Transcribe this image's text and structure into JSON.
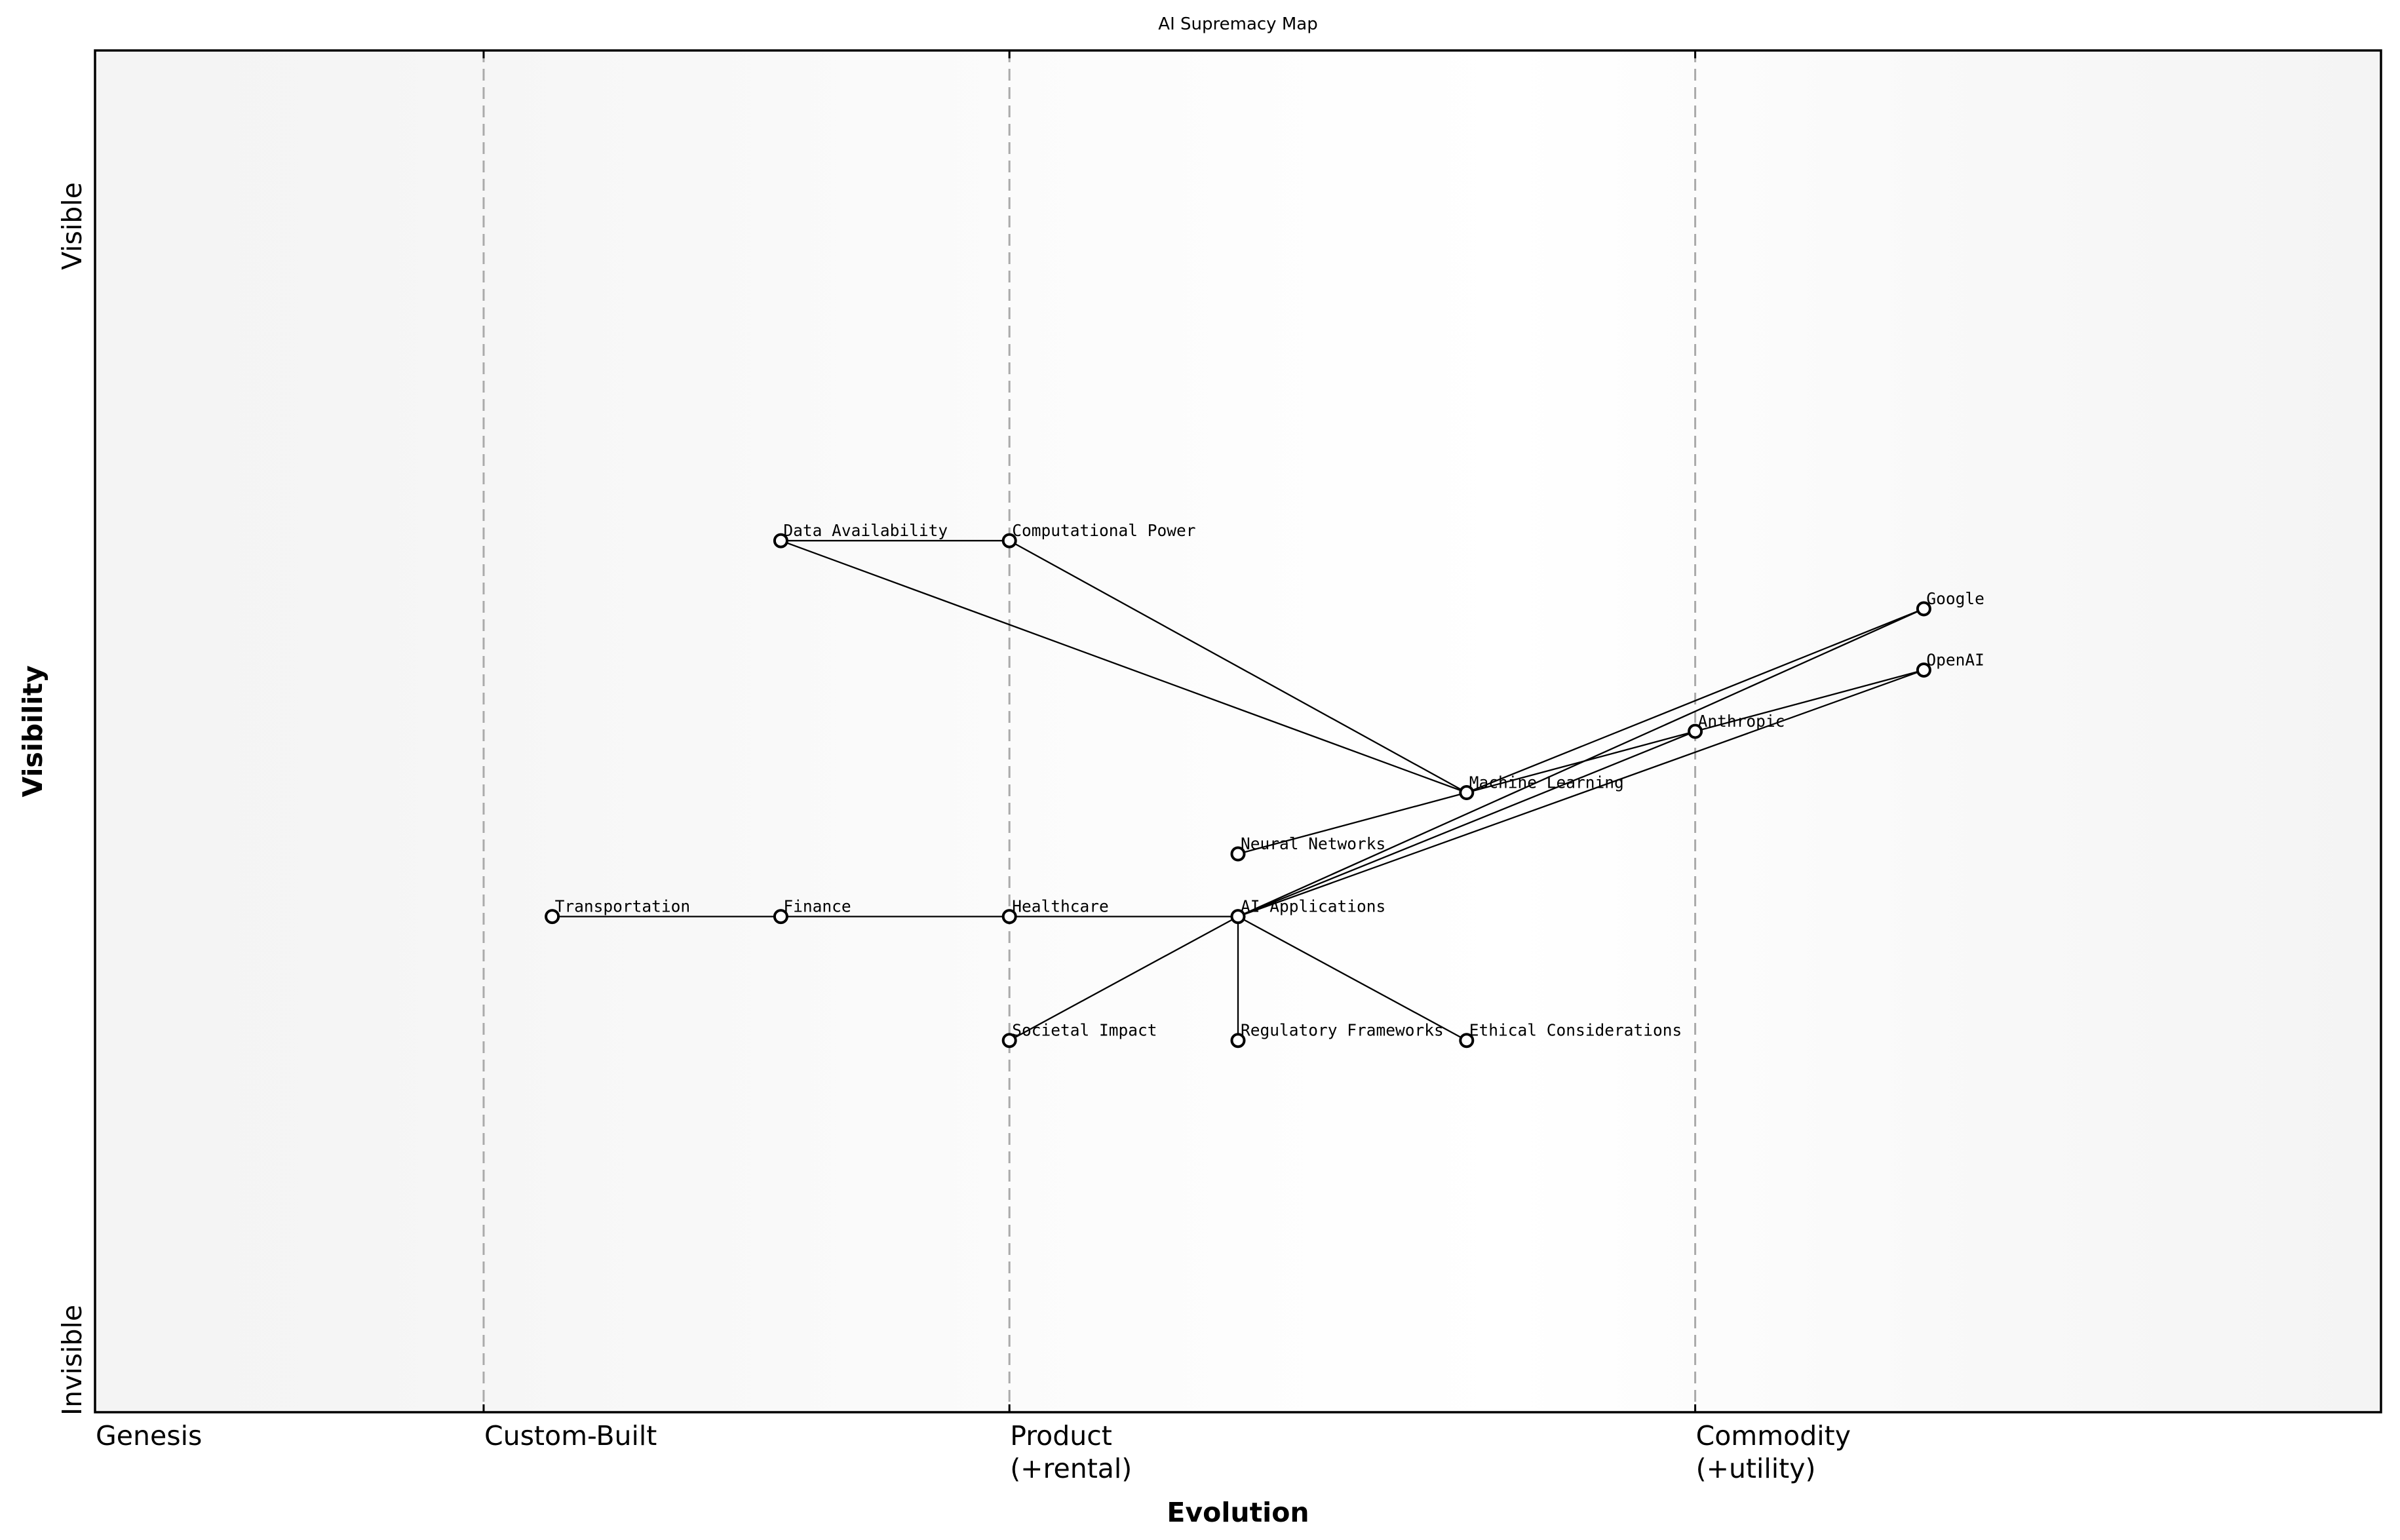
{
  "title": "AI Supremacy Map",
  "axes": {
    "xlabel": "Evolution",
    "ylabel": "Visibility",
    "y_top_label": "Visible",
    "y_bottom_label": "Invisible",
    "xticks": [
      {
        "pos": 0.0,
        "label": "Genesis"
      },
      {
        "pos": 0.17,
        "label": "Custom-Built"
      },
      {
        "pos": 0.4,
        "label": "Product\n(+rental)"
      },
      {
        "pos": 0.7,
        "label": "Commodity\n(+utility)"
      }
    ],
    "stage_dividers": [
      0.17,
      0.4,
      0.7
    ]
  },
  "colors": {
    "background_edge": "#f4f4f4",
    "background_center": "#ffffff",
    "divider": "#aaaaaa",
    "line": "#000000",
    "node_fill": "#ffffff",
    "node_stroke": "#000000"
  },
  "chart_data": {
    "type": "network",
    "title": "AI Supremacy Map",
    "xlabel": "Evolution",
    "ylabel": "Visibility",
    "xlim": [
      0,
      1
    ],
    "ylim": [
      0,
      1
    ],
    "grid": false,
    "nodes": [
      {
        "id": "Data Availability",
        "x": 0.3,
        "y": 0.64
      },
      {
        "id": "Computational Power",
        "x": 0.4,
        "y": 0.64
      },
      {
        "id": "Google",
        "x": 0.8,
        "y": 0.59
      },
      {
        "id": "OpenAI",
        "x": 0.8,
        "y": 0.545
      },
      {
        "id": "Anthropic",
        "x": 0.7,
        "y": 0.5
      },
      {
        "id": "Machine Learning",
        "x": 0.6,
        "y": 0.455
      },
      {
        "id": "Neural Networks",
        "x": 0.5,
        "y": 0.41
      },
      {
        "id": "Transportation",
        "x": 0.2,
        "y": 0.364
      },
      {
        "id": "Finance",
        "x": 0.3,
        "y": 0.364
      },
      {
        "id": "Healthcare",
        "x": 0.4,
        "y": 0.364
      },
      {
        "id": "AI Applications",
        "x": 0.5,
        "y": 0.364
      },
      {
        "id": "Societal Impact",
        "x": 0.4,
        "y": 0.273
      },
      {
        "id": "Regulatory Frameworks",
        "x": 0.5,
        "y": 0.273
      },
      {
        "id": "Ethical Considerations",
        "x": 0.6,
        "y": 0.273
      }
    ],
    "edges": [
      [
        "Data Availability",
        "Computational Power"
      ],
      [
        "Data Availability",
        "Machine Learning"
      ],
      [
        "Computational Power",
        "Machine Learning"
      ],
      [
        "Neural Networks",
        "Machine Learning"
      ],
      [
        "Machine Learning",
        "Google"
      ],
      [
        "Machine Learning",
        "Anthropic"
      ],
      [
        "Anthropic",
        "OpenAI"
      ],
      [
        "AI Applications",
        "Google"
      ],
      [
        "AI Applications",
        "Anthropic"
      ],
      [
        "AI Applications",
        "OpenAI"
      ],
      [
        "Transportation",
        "Finance"
      ],
      [
        "Finance",
        "Healthcare"
      ],
      [
        "Healthcare",
        "AI Applications"
      ],
      [
        "AI Applications",
        "Societal Impact"
      ],
      [
        "AI Applications",
        "Regulatory Frameworks"
      ],
      [
        "AI Applications",
        "Ethical Considerations"
      ]
    ]
  }
}
